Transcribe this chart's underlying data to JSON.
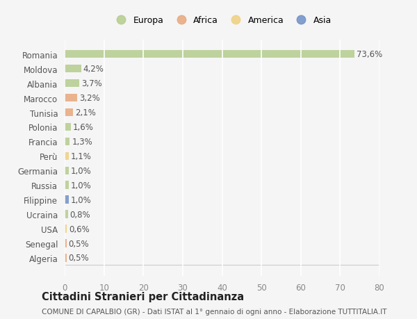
{
  "countries": [
    "Romania",
    "Moldova",
    "Albania",
    "Marocco",
    "Tunisia",
    "Polonia",
    "Francia",
    "Perù",
    "Germania",
    "Russia",
    "Filippine",
    "Ucraina",
    "USA",
    "Senegal",
    "Algeria"
  ],
  "values": [
    73.6,
    4.2,
    3.7,
    3.2,
    2.1,
    1.6,
    1.3,
    1.1,
    1.0,
    1.0,
    1.0,
    0.8,
    0.6,
    0.5,
    0.5
  ],
  "labels": [
    "73,6%",
    "4,2%",
    "3,7%",
    "3,2%",
    "2,1%",
    "1,6%",
    "1,3%",
    "1,1%",
    "1,0%",
    "1,0%",
    "1,0%",
    "0,8%",
    "0,6%",
    "0,5%",
    "0,5%"
  ],
  "continents": [
    "Europa",
    "Europa",
    "Europa",
    "Africa",
    "Africa",
    "Europa",
    "Europa",
    "America",
    "Europa",
    "Europa",
    "Asia",
    "Europa",
    "America",
    "Africa",
    "Africa"
  ],
  "continent_colors": {
    "Europa": "#b5cc8e",
    "Africa": "#e8a87c",
    "America": "#f0d080",
    "Asia": "#7090c8"
  },
  "legend_order": [
    "Europa",
    "Africa",
    "America",
    "Asia"
  ],
  "legend_colors": [
    "#b5cc8e",
    "#e8a87c",
    "#f0d080",
    "#7090c8"
  ],
  "xlim": [
    0,
    80
  ],
  "xticks": [
    0,
    10,
    20,
    30,
    40,
    50,
    60,
    70,
    80
  ],
  "title": "Cittadini Stranieri per Cittadinanza",
  "subtitle": "COMUNE DI CAPALBIO (GR) - Dati ISTAT al 1° gennaio di ogni anno - Elaborazione TUTTITALIA.IT",
  "bg_color": "#f5f5f5",
  "grid_color": "#ffffff",
  "bar_height": 0.55,
  "label_fontsize": 8.5,
  "tick_fontsize": 8.5,
  "title_fontsize": 10.5,
  "subtitle_fontsize": 7.5
}
